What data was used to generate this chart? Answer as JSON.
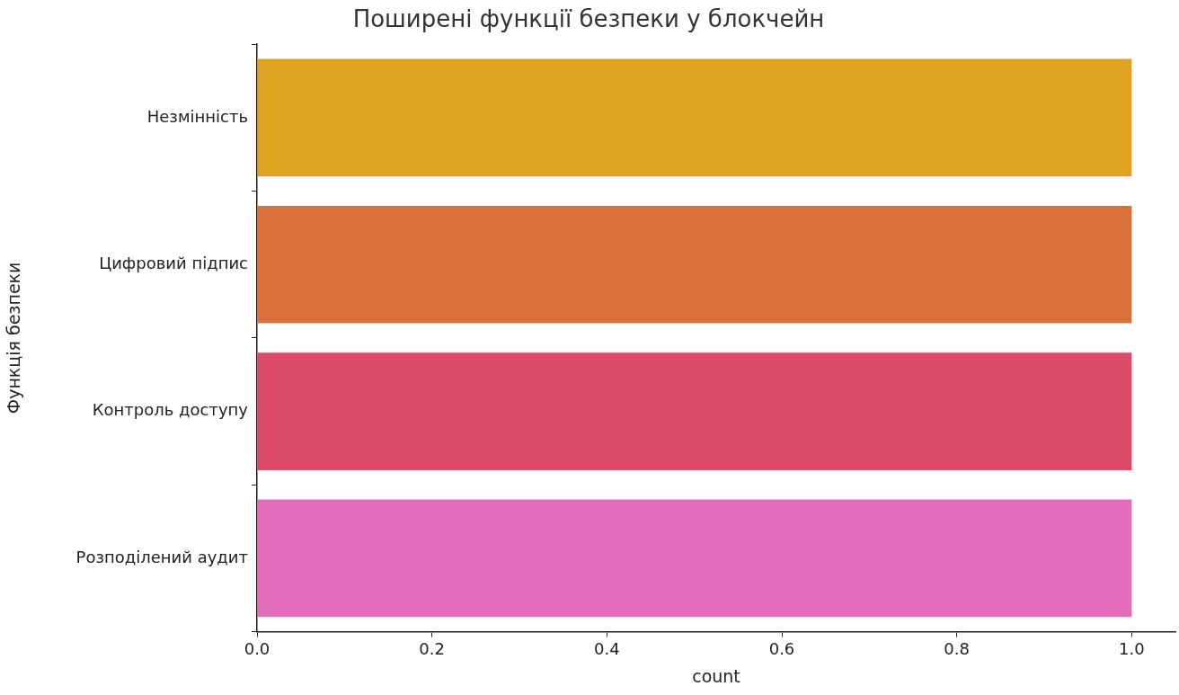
{
  "chart_data": {
    "type": "bar",
    "orientation": "horizontal",
    "title": "Поширені функції безпеки у блокчейн",
    "xlabel": "count",
    "ylabel": "Функція безпеки",
    "categories": [
      "Незмінність",
      "Цифровий підпис",
      "Контроль доступу",
      "Розподілений аудит"
    ],
    "values": [
      1,
      1,
      1,
      1
    ],
    "colors": [
      "#dfa321",
      "#d9703a",
      "#dc4a67",
      "#e36cba"
    ],
    "xlim": [
      0,
      1.05
    ],
    "xticks": [
      {
        "value": 0,
        "label": "0.0"
      },
      {
        "value": 0.2,
        "label": "0.2"
      },
      {
        "value": 0.4,
        "label": "0.4"
      },
      {
        "value": 0.6,
        "label": "0.6"
      },
      {
        "value": 0.8,
        "label": "0.8"
      },
      {
        "value": 1,
        "label": "1.0"
      }
    ],
    "grid": false,
    "legend": false
  }
}
